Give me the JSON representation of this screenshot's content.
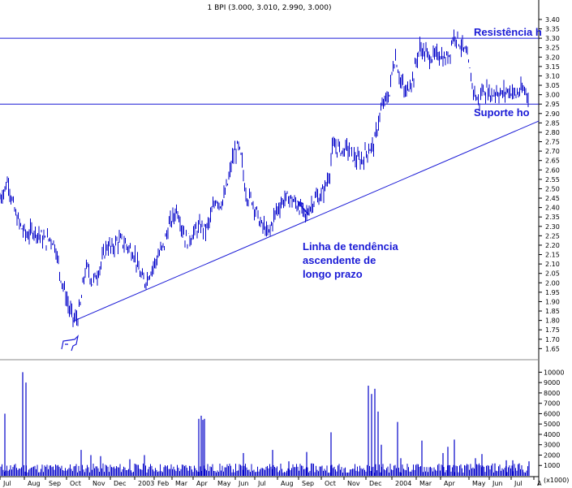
{
  "header": {
    "title": "1 BPI (3.000, 3.010, 2.990, 3.000)"
  },
  "colors": {
    "price": "#0000c8",
    "line": "#1a1ad6",
    "volume": "#0000c8",
    "axis": "#000000",
    "text": "#000000"
  },
  "chart_data": [
    {
      "type": "bar",
      "subtype": "ohlc-price-chart",
      "title": "1 BPI (3.000, 3.010, 2.990, 3.000)",
      "ylim": [
        1.63,
        3.43
      ],
      "y_ticks": [
        "3.40",
        "3.35",
        "3.30",
        "3.25",
        "3.20",
        "3.15",
        "3.10",
        "3.05",
        "3.00",
        "2.95",
        "2.90",
        "2.85",
        "2.80",
        "2.75",
        "2.70",
        "2.65",
        "2.60",
        "2.55",
        "2.50",
        "2.45",
        "2.40",
        "2.35",
        "2.30",
        "2.25",
        "2.20",
        "2.15",
        "2.10",
        "2.05",
        "2.00",
        "1.95",
        "1.90",
        "1.85",
        "1.80",
        "1.75",
        "1.70",
        "1.65"
      ],
      "x_labels": [
        "Jul",
        "Aug",
        "Sep",
        "Oct",
        "Nov",
        "Dec",
        "2003",
        "Feb",
        "Mar",
        "Apr",
        "May",
        "Jun",
        "Jul",
        "Aug",
        "Sep",
        "Oct",
        "Nov",
        "Dec",
        "2004",
        "Mar",
        "Apr",
        "May",
        "Jun",
        "Jul",
        "A"
      ],
      "series_points": [
        [
          0,
          2.45
        ],
        [
          6,
          2.5
        ],
        [
          10,
          2.55
        ],
        [
          14,
          2.45
        ],
        [
          20,
          2.35
        ],
        [
          28,
          2.28
        ],
        [
          34,
          2.25
        ],
        [
          40,
          2.28
        ],
        [
          48,
          2.26
        ],
        [
          56,
          2.22
        ],
        [
          62,
          2.24
        ],
        [
          68,
          2.2
        ],
        [
          74,
          2.05
        ],
        [
          80,
          1.95
        ],
        [
          86,
          1.85
        ],
        [
          92,
          1.8
        ],
        [
          96,
          1.82
        ],
        [
          100,
          1.9
        ],
        [
          104,
          2.05
        ],
        [
          108,
          2.08
        ],
        [
          114,
          2.0
        ],
        [
          120,
          2.05
        ],
        [
          126,
          2.12
        ],
        [
          132,
          2.2
        ],
        [
          138,
          2.18
        ],
        [
          144,
          2.22
        ],
        [
          150,
          2.22
        ],
        [
          156,
          2.2
        ],
        [
          160,
          2.18
        ],
        [
          166,
          2.15
        ],
        [
          172,
          2.05
        ],
        [
          178,
          2.0
        ],
        [
          184,
          2.05
        ],
        [
          190,
          2.1
        ],
        [
          196,
          2.15
        ],
        [
          202,
          2.2
        ],
        [
          208,
          2.3
        ],
        [
          214,
          2.35
        ],
        [
          218,
          2.4
        ],
        [
          224,
          2.3
        ],
        [
          230,
          2.22
        ],
        [
          236,
          2.25
        ],
        [
          242,
          2.28
        ],
        [
          248,
          2.3
        ],
        [
          254,
          2.28
        ],
        [
          260,
          2.35
        ],
        [
          266,
          2.45
        ],
        [
          272,
          2.42
        ],
        [
          276,
          2.45
        ],
        [
          282,
          2.55
        ],
        [
          286,
          2.65
        ],
        [
          290,
          2.7
        ],
        [
          294,
          2.72
        ],
        [
          298,
          2.65
        ],
        [
          302,
          2.5
        ],
        [
          306,
          2.45
        ],
        [
          310,
          2.45
        ],
        [
          316,
          2.38
        ],
        [
          322,
          2.3
        ],
        [
          326,
          2.3
        ],
        [
          330,
          2.25
        ],
        [
          334,
          2.3
        ],
        [
          340,
          2.38
        ],
        [
          346,
          2.42
        ],
        [
          352,
          2.45
        ],
        [
          358,
          2.45
        ],
        [
          364,
          2.42
        ],
        [
          370,
          2.4
        ],
        [
          376,
          2.35
        ],
        [
          382,
          2.4
        ],
        [
          388,
          2.45
        ],
        [
          394,
          2.45
        ],
        [
          400,
          2.5
        ],
        [
          406,
          2.58
        ],
        [
          410,
          2.72
        ],
        [
          416,
          2.72
        ],
        [
          422,
          2.7
        ],
        [
          428,
          2.72
        ],
        [
          434,
          2.68
        ],
        [
          440,
          2.65
        ],
        [
          446,
          2.65
        ],
        [
          452,
          2.7
        ],
        [
          458,
          2.72
        ],
        [
          462,
          2.75
        ],
        [
          466,
          2.85
        ],
        [
          470,
          2.92
        ],
        [
          476,
          2.98
        ],
        [
          480,
          3.0
        ],
        [
          484,
          3.15
        ],
        [
          488,
          3.2
        ],
        [
          492,
          3.1
        ],
        [
          496,
          3.05
        ],
        [
          500,
          3.0
        ],
        [
          504,
          3.05
        ],
        [
          510,
          3.1
        ],
        [
          514,
          3.2
        ],
        [
          518,
          3.25
        ],
        [
          524,
          3.22
        ],
        [
          530,
          3.2
        ],
        [
          536,
          3.2
        ],
        [
          542,
          3.22
        ],
        [
          548,
          3.18
        ],
        [
          554,
          3.22
        ],
        [
          558,
          3.3
        ],
        [
          562,
          3.32
        ],
        [
          566,
          3.28
        ],
        [
          570,
          3.25
        ],
        [
          574,
          3.22
        ],
        [
          578,
          3.15
        ],
        [
          582,
          3.05
        ],
        [
          586,
          3.0
        ],
        [
          590,
          2.95
        ],
        [
          594,
          3.02
        ],
        [
          600,
          3.02
        ],
        [
          606,
          3.0
        ],
        [
          612,
          3.02
        ],
        [
          618,
          3.0
        ],
        [
          624,
          3.02
        ],
        [
          630,
          3.02
        ],
        [
          636,
          3.0
        ],
        [
          642,
          3.02
        ],
        [
          648,
          3.02
        ],
        [
          652,
          3.0
        ]
      ],
      "horizontal_lines": [
        {
          "label": "Resistência h",
          "value": 3.3
        },
        {
          "label": "Suporte ho",
          "value": 2.95
        }
      ],
      "trendline": {
        "start": [
          1.795,
          0.135
        ],
        "end": [
          2.86,
          1.0
        ]
      },
      "annotations": [
        "Linha de tendência",
        "ascendente de",
        "longo prazo"
      ]
    },
    {
      "type": "bar",
      "subtype": "volume",
      "ylim": [
        0,
        10500
      ],
      "y_ticks": [
        "10000",
        "9000",
        "8000",
        "7000",
        "6000",
        "5000",
        "4000",
        "3000",
        "2000",
        "1000"
      ],
      "y_unit": "(x1000)",
      "spikes": [
        [
          6,
          6000
        ],
        [
          28,
          10000
        ],
        [
          32,
          9000
        ],
        [
          100,
          2500
        ],
        [
          112,
          2000
        ],
        [
          124,
          1900
        ],
        [
          160,
          1600
        ],
        [
          178,
          2000
        ],
        [
          245,
          5500
        ],
        [
          248,
          5800
        ],
        [
          250,
          5400
        ],
        [
          252,
          5500
        ],
        [
          300,
          2200
        ],
        [
          336,
          2500
        ],
        [
          356,
          1400
        ],
        [
          378,
          2300
        ],
        [
          408,
          4200
        ],
        [
          454,
          8700
        ],
        [
          458,
          7900
        ],
        [
          462,
          8400
        ],
        [
          466,
          6200
        ],
        [
          470,
          3000
        ],
        [
          490,
          5200
        ],
        [
          494,
          1700
        ],
        [
          520,
          3400
        ],
        [
          546,
          2200
        ],
        [
          552,
          2800
        ],
        [
          560,
          3500
        ],
        [
          586,
          1700
        ],
        [
          594,
          2100
        ],
        [
          610,
          1200
        ],
        [
          624,
          1500
        ],
        [
          632,
          1500
        ],
        [
          640,
          1200
        ],
        [
          652,
          1400
        ]
      ]
    }
  ]
}
